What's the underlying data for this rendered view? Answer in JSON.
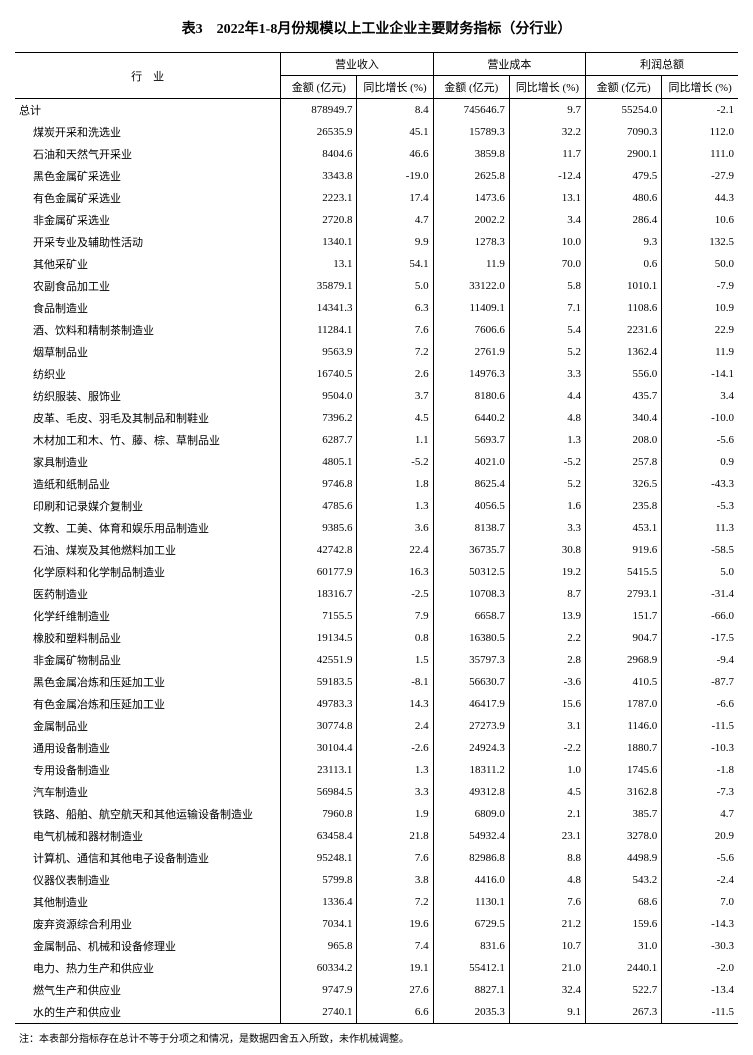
{
  "title": "表3　2022年1-8月份规模以上工业企业主要财务指标（分行业）",
  "header": {
    "industry": "行　业",
    "groups": [
      "营业收入",
      "营业成本",
      "利润总额"
    ],
    "sub_amount": "金额\n(亿元)",
    "sub_growth": "同比增长\n(%)"
  },
  "total_label": "总计",
  "total_row": [
    "878949.7",
    "8.4",
    "745646.7",
    "9.7",
    "55254.0",
    "-2.1"
  ],
  "rows": [
    {
      "n": "煤炭开采和洗选业",
      "v": [
        "26535.9",
        "45.1",
        "15789.3",
        "32.2",
        "7090.3",
        "112.0"
      ]
    },
    {
      "n": "石油和天然气开采业",
      "v": [
        "8404.6",
        "46.6",
        "3859.8",
        "11.7",
        "2900.1",
        "111.0"
      ]
    },
    {
      "n": "黑色金属矿采选业",
      "v": [
        "3343.8",
        "-19.0",
        "2625.8",
        "-12.4",
        "479.5",
        "-27.9"
      ]
    },
    {
      "n": "有色金属矿采选业",
      "v": [
        "2223.1",
        "17.4",
        "1473.6",
        "13.1",
        "480.6",
        "44.3"
      ]
    },
    {
      "n": "非金属矿采选业",
      "v": [
        "2720.8",
        "4.7",
        "2002.2",
        "3.4",
        "286.4",
        "10.6"
      ]
    },
    {
      "n": "开采专业及辅助性活动",
      "v": [
        "1340.1",
        "9.9",
        "1278.3",
        "10.0",
        "9.3",
        "132.5"
      ]
    },
    {
      "n": "其他采矿业",
      "v": [
        "13.1",
        "54.1",
        "11.9",
        "70.0",
        "0.6",
        "50.0"
      ]
    },
    {
      "n": "农副食品加工业",
      "v": [
        "35879.1",
        "5.0",
        "33122.0",
        "5.8",
        "1010.1",
        "-7.9"
      ]
    },
    {
      "n": "食品制造业",
      "v": [
        "14341.3",
        "6.3",
        "11409.1",
        "7.1",
        "1108.6",
        "10.9"
      ]
    },
    {
      "n": "酒、饮料和精制茶制造业",
      "v": [
        "11284.1",
        "7.6",
        "7606.6",
        "5.4",
        "2231.6",
        "22.9"
      ]
    },
    {
      "n": "烟草制品业",
      "v": [
        "9563.9",
        "7.2",
        "2761.9",
        "5.2",
        "1362.4",
        "11.9"
      ]
    },
    {
      "n": "纺织业",
      "v": [
        "16740.5",
        "2.6",
        "14976.3",
        "3.3",
        "556.0",
        "-14.1"
      ]
    },
    {
      "n": "纺织服装、服饰业",
      "v": [
        "9504.0",
        "3.7",
        "8180.6",
        "4.4",
        "435.7",
        "3.4"
      ]
    },
    {
      "n": "皮革、毛皮、羽毛及其制品和制鞋业",
      "v": [
        "7396.2",
        "4.5",
        "6440.2",
        "4.8",
        "340.4",
        "-10.0"
      ]
    },
    {
      "n": "木材加工和木、竹、藤、棕、草制品业",
      "v": [
        "6287.7",
        "1.1",
        "5693.7",
        "1.3",
        "208.0",
        "-5.6"
      ]
    },
    {
      "n": "家具制造业",
      "v": [
        "4805.1",
        "-5.2",
        "4021.0",
        "-5.2",
        "257.8",
        "0.9"
      ]
    },
    {
      "n": "造纸和纸制品业",
      "v": [
        "9746.8",
        "1.8",
        "8625.4",
        "5.2",
        "326.5",
        "-43.3"
      ]
    },
    {
      "n": "印刷和记录媒介复制业",
      "v": [
        "4785.6",
        "1.3",
        "4056.5",
        "1.6",
        "235.8",
        "-5.3"
      ]
    },
    {
      "n": "文教、工美、体育和娱乐用品制造业",
      "v": [
        "9385.6",
        "3.6",
        "8138.7",
        "3.3",
        "453.1",
        "11.3"
      ]
    },
    {
      "n": "石油、煤炭及其他燃料加工业",
      "v": [
        "42742.8",
        "22.4",
        "36735.7",
        "30.8",
        "919.6",
        "-58.5"
      ]
    },
    {
      "n": "化学原料和化学制品制造业",
      "v": [
        "60177.9",
        "16.3",
        "50312.5",
        "19.2",
        "5415.5",
        "5.0"
      ]
    },
    {
      "n": "医药制造业",
      "v": [
        "18316.7",
        "-2.5",
        "10708.3",
        "8.7",
        "2793.1",
        "-31.4"
      ]
    },
    {
      "n": "化学纤维制造业",
      "v": [
        "7155.5",
        "7.9",
        "6658.7",
        "13.9",
        "151.7",
        "-66.0"
      ]
    },
    {
      "n": "橡胶和塑料制品业",
      "v": [
        "19134.5",
        "0.8",
        "16380.5",
        "2.2",
        "904.7",
        "-17.5"
      ]
    },
    {
      "n": "非金属矿物制品业",
      "v": [
        "42551.9",
        "1.5",
        "35797.3",
        "2.8",
        "2968.9",
        "-9.4"
      ]
    },
    {
      "n": "黑色金属冶炼和压延加工业",
      "v": [
        "59183.5",
        "-8.1",
        "56630.7",
        "-3.6",
        "410.5",
        "-87.7"
      ]
    },
    {
      "n": "有色金属冶炼和压延加工业",
      "v": [
        "49783.3",
        "14.3",
        "46417.9",
        "15.6",
        "1787.0",
        "-6.6"
      ]
    },
    {
      "n": "金属制品业",
      "v": [
        "30774.8",
        "2.4",
        "27273.9",
        "3.1",
        "1146.0",
        "-11.5"
      ]
    },
    {
      "n": "通用设备制造业",
      "v": [
        "30104.4",
        "-2.6",
        "24924.3",
        "-2.2",
        "1880.7",
        "-10.3"
      ]
    },
    {
      "n": "专用设备制造业",
      "v": [
        "23113.1",
        "1.3",
        "18311.2",
        "1.0",
        "1745.6",
        "-1.8"
      ]
    },
    {
      "n": "汽车制造业",
      "v": [
        "56984.5",
        "3.3",
        "49312.8",
        "4.5",
        "3162.8",
        "-7.3"
      ]
    },
    {
      "n": "铁路、船舶、航空航天和其他运输设备制造业",
      "v": [
        "7960.8",
        "1.9",
        "6809.0",
        "2.1",
        "385.7",
        "4.7"
      ]
    },
    {
      "n": "电气机械和器材制造业",
      "v": [
        "63458.4",
        "21.8",
        "54932.4",
        "23.1",
        "3278.0",
        "20.9"
      ]
    },
    {
      "n": "计算机、通信和其他电子设备制造业",
      "v": [
        "95248.1",
        "7.6",
        "82986.8",
        "8.8",
        "4498.9",
        "-5.6"
      ]
    },
    {
      "n": "仪器仪表制造业",
      "v": [
        "5799.8",
        "3.8",
        "4416.0",
        "4.8",
        "543.2",
        "-2.4"
      ]
    },
    {
      "n": "其他制造业",
      "v": [
        "1336.4",
        "7.2",
        "1130.1",
        "7.6",
        "68.6",
        "7.0"
      ]
    },
    {
      "n": "废弃资源综合利用业",
      "v": [
        "7034.1",
        "19.6",
        "6729.5",
        "21.2",
        "159.6",
        "-14.3"
      ]
    },
    {
      "n": "金属制品、机械和设备修理业",
      "v": [
        "965.8",
        "7.4",
        "831.6",
        "10.7",
        "31.0",
        "-30.3"
      ]
    },
    {
      "n": "电力、热力生产和供应业",
      "v": [
        "60334.2",
        "19.1",
        "55412.1",
        "21.0",
        "2440.1",
        "-2.0"
      ]
    },
    {
      "n": "燃气生产和供应业",
      "v": [
        "9747.9",
        "27.6",
        "8827.1",
        "32.4",
        "522.7",
        "-13.4"
      ]
    },
    {
      "n": "水的生产和供应业",
      "v": [
        "2740.1",
        "6.6",
        "2035.3",
        "9.1",
        "267.3",
        "-11.5"
      ]
    }
  ],
  "footnote": "注：本表部分指标存在总计不等于分项之和情况，是数据四舍五入所致，未作机械调整。"
}
